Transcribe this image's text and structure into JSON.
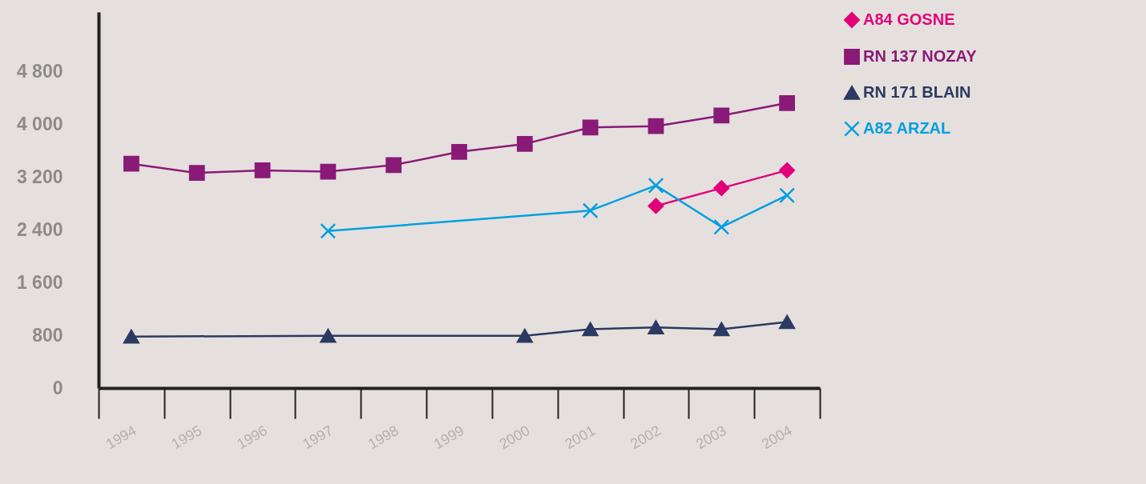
{
  "chart_data": {
    "type": "line",
    "categories": [
      "1994",
      "1995",
      "1996",
      "1997",
      "1998",
      "1999",
      "2000",
      "2001",
      "2002",
      "2003",
      "2004"
    ],
    "series": [
      {
        "name": "A84 GOSNE",
        "color": "#e2007a",
        "marker": "diamond",
        "values": [
          null,
          null,
          null,
          null,
          null,
          null,
          null,
          null,
          2760,
          3030,
          3300
        ]
      },
      {
        "name": "RN 137 NOZAY",
        "color": "#8a1a78",
        "marker": "square",
        "values": [
          3400,
          3260,
          3300,
          3280,
          3380,
          3580,
          3700,
          3950,
          3970,
          4130,
          4320
        ]
      },
      {
        "name": "RN 171 BLAIN",
        "color": "#2b3a62",
        "marker": "triangle",
        "values": [
          780,
          null,
          null,
          790,
          null,
          null,
          790,
          890,
          920,
          890,
          1000
        ]
      },
      {
        "name": "A82 ARZAL",
        "color": "#009fe0",
        "marker": "cross",
        "values": [
          null,
          null,
          null,
          2380,
          null,
          null,
          null,
          2690,
          3070,
          2440,
          2920
        ]
      }
    ],
    "ylim": [
      0,
      5700
    ],
    "yticks": [
      0,
      800,
      {
        "value": 1600,
        "label": "1 600"
      },
      {
        "value": 2400,
        "label": "2 400"
      },
      {
        "value": 3200,
        "label": "3 200"
      },
      {
        "value": 4000,
        "label": "4 000"
      },
      {
        "value": 4800,
        "label": "4 800"
      }
    ],
    "legend": "right",
    "grid": false
  }
}
